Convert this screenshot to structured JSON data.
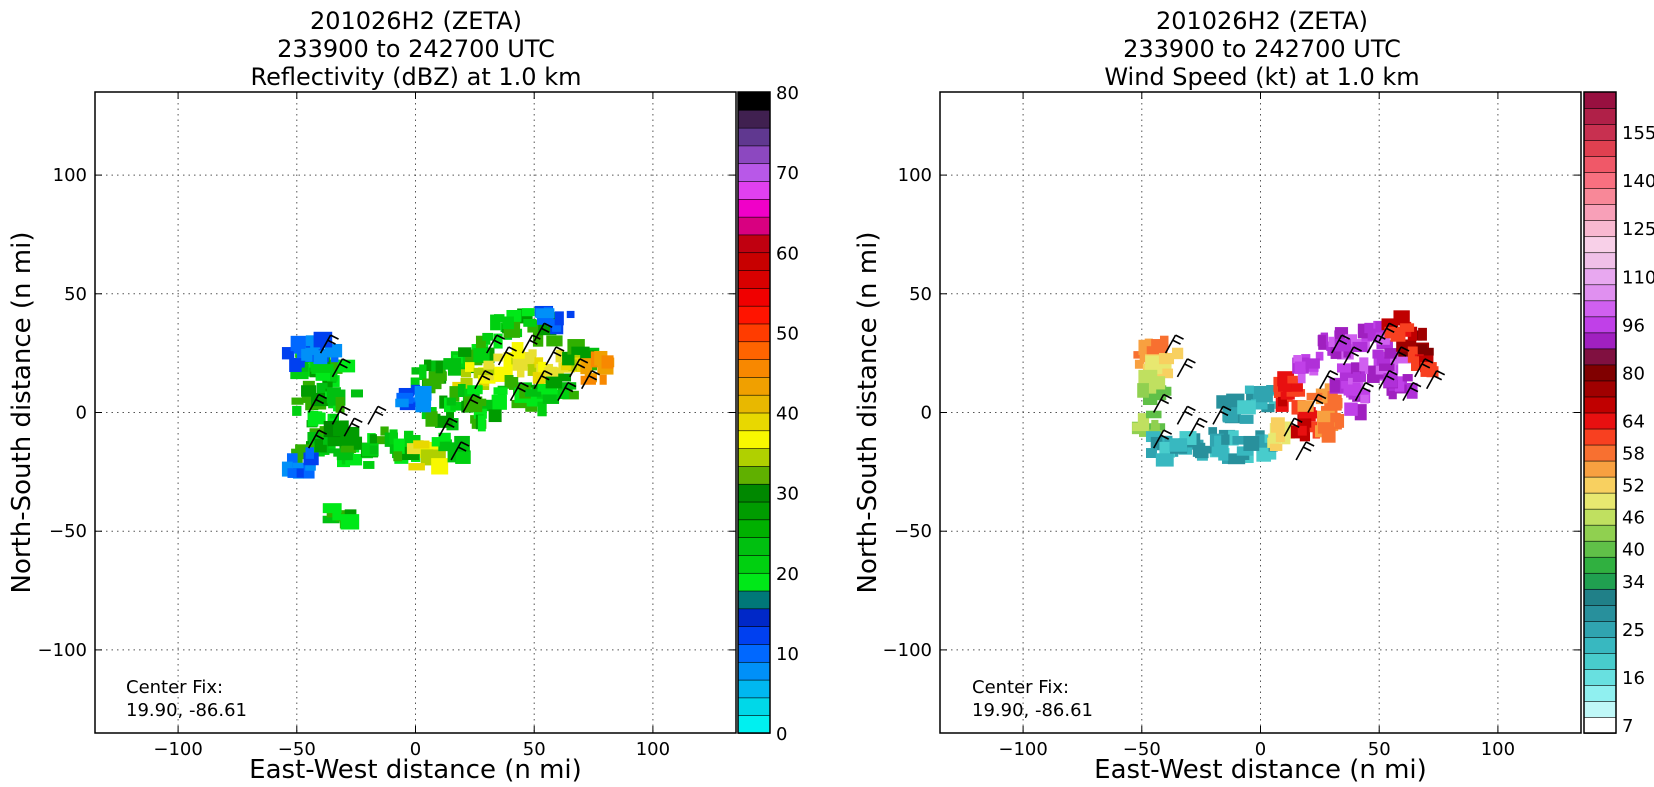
{
  "chart_data": [
    {
      "type": "heatmap",
      "title_lines": [
        "201026H2 (ZETA)",
        "233900 to 242700 UTC",
        "Reflectivity (dBZ) at 1.0 km"
      ],
      "xlabel": "East-West distance (n mi)",
      "ylabel": "North-South distance (n mi)",
      "xlim": [
        -135,
        135
      ],
      "ylim": [
        -135,
        135
      ],
      "xticks": [
        -100,
        -50,
        0,
        50,
        100
      ],
      "yticks": [
        -100,
        -50,
        0,
        50,
        100
      ],
      "xtick_labels": [
        "−100",
        "−50",
        "0",
        "50",
        "100"
      ],
      "ytick_labels": [
        "−100",
        "−50",
        "0",
        "50",
        "100"
      ],
      "grid": true,
      "annotation": [
        "Center Fix:",
        "19.90, -86.61"
      ],
      "colorbar": {
        "min": 0,
        "max": 80,
        "tick_values": [
          0,
          10,
          20,
          30,
          40,
          50,
          60,
          70,
          80
        ],
        "tick_labels": [
          "0",
          "10",
          "20",
          "30",
          "40",
          "50",
          "60",
          "70",
          "80"
        ],
        "colors": [
          "#00f0f0",
          "#00d8e8",
          "#00b8f0",
          "#0090f8",
          "#0068ff",
          "#0040f0",
          "#0028c8",
          "#007878",
          "#00e818",
          "#00d010",
          "#00c010",
          "#00b000",
          "#009c00",
          "#008800",
          "#60b000",
          "#b0d000",
          "#f8f800",
          "#e8d800",
          "#e8b800",
          "#f0a000",
          "#f88800",
          "#ff6400",
          "#ff3c00",
          "#ff1400",
          "#f00000",
          "#d80000",
          "#c80000",
          "#c00010",
          "#d80080",
          "#f000c8",
          "#e040f0",
          "#b858e8",
          "#8c48c0",
          "#603890",
          "#402050",
          "#000000"
        ]
      },
      "points": [
        {
          "x": -45,
          "y": 22,
          "c": "green"
        },
        {
          "x": -40,
          "y": 15,
          "c": "green"
        },
        {
          "x": -35,
          "y": 20,
          "c": "green"
        },
        {
          "x": -45,
          "y": 5,
          "c": "green"
        },
        {
          "x": -40,
          "y": -5,
          "c": "green"
        },
        {
          "x": -30,
          "y": 5,
          "c": "green"
        },
        {
          "x": -45,
          "y": -15,
          "c": "green"
        },
        {
          "x": -35,
          "y": -12,
          "c": "green"
        },
        {
          "x": -25,
          "y": -18,
          "c": "green"
        },
        {
          "x": -48,
          "y": 25,
          "c": "blue"
        },
        {
          "x": -40,
          "y": 28,
          "c": "blue"
        },
        {
          "x": -48,
          "y": -22,
          "c": "blue"
        },
        {
          "x": -30,
          "y": -8,
          "c": "darkgreen"
        },
        {
          "x": -15,
          "y": -12,
          "c": "green"
        },
        {
          "x": -5,
          "y": -15,
          "c": "green"
        },
        {
          "x": 5,
          "y": -18,
          "c": "yellow"
        },
        {
          "x": 15,
          "y": -15,
          "c": "green"
        },
        {
          "x": 10,
          "y": 0,
          "c": "green"
        },
        {
          "x": 5,
          "y": 15,
          "c": "green"
        },
        {
          "x": 15,
          "y": 20,
          "c": "green"
        },
        {
          "x": 25,
          "y": 28,
          "c": "green"
        },
        {
          "x": 35,
          "y": 35,
          "c": "green"
        },
        {
          "x": 45,
          "y": 38,
          "c": "green"
        },
        {
          "x": 55,
          "y": 35,
          "c": "green"
        },
        {
          "x": 25,
          "y": 15,
          "c": "yellow"
        },
        {
          "x": 35,
          "y": 20,
          "c": "yellow"
        },
        {
          "x": 45,
          "y": 22,
          "c": "yellow"
        },
        {
          "x": 55,
          "y": 18,
          "c": "yellow"
        },
        {
          "x": 65,
          "y": 20,
          "c": "yellow"
        },
        {
          "x": 40,
          "y": 8,
          "c": "green"
        },
        {
          "x": 30,
          "y": 0,
          "c": "green"
        },
        {
          "x": 50,
          "y": 5,
          "c": "green"
        },
        {
          "x": 60,
          "y": 10,
          "c": "green"
        },
        {
          "x": 70,
          "y": 25,
          "c": "green"
        },
        {
          "x": 75,
          "y": 18,
          "c": "orange"
        },
        {
          "x": 20,
          "y": 5,
          "c": "green"
        },
        {
          "x": -30,
          "y": -42,
          "c": "green"
        },
        {
          "x": 0,
          "y": 5,
          "c": "blue"
        },
        {
          "x": 60,
          "y": 40,
          "c": "blue"
        }
      ]
    },
    {
      "type": "heatmap",
      "title_lines": [
        "201026H2 (ZETA)",
        "233900 to 242700 UTC",
        "Wind Speed (kt) at 1.0 km"
      ],
      "xlabel": "East-West distance (n mi)",
      "ylabel": "North-South distance (n mi)",
      "xlim": [
        -135,
        135
      ],
      "ylim": [
        -135,
        135
      ],
      "xticks": [
        -100,
        -50,
        0,
        50,
        100
      ],
      "yticks": [
        -100,
        -50,
        0,
        50,
        100
      ],
      "xtick_labels": [
        "−100",
        "−50",
        "0",
        "50",
        "100"
      ],
      "ytick_labels": [
        "−100",
        "−50",
        "0",
        "50",
        "100"
      ],
      "grid": true,
      "annotation": [
        "Center Fix:",
        "19.90, -86.61"
      ],
      "colorbar": {
        "tick_labels": [
          "7",
          "16",
          "25",
          "34",
          "40",
          "46",
          "52",
          "58",
          "64",
          "80",
          "96",
          "110",
          "125",
          "140",
          "155"
        ],
        "tick_segments": [
          0.5,
          3.5,
          6.5,
          9.5,
          11.5,
          13.5,
          15.5,
          17.5,
          19.5,
          22.5,
          25.5,
          28.5,
          31.5,
          34.5,
          37.5
        ],
        "colors": [
          "#ffffff",
          "#c0f8f8",
          "#90f0f0",
          "#68e0e0",
          "#48cccc",
          "#38b8c0",
          "#30a4b0",
          "#28909c",
          "#208088",
          "#20a050",
          "#30b040",
          "#60c048",
          "#90d050",
          "#c0e060",
          "#e8e870",
          "#f8d060",
          "#f8a040",
          "#f87030",
          "#f84020",
          "#e81010",
          "#c00000",
          "#a00000",
          "#800000",
          "#801040",
          "#a020c0",
          "#c040e8",
          "#d060f0",
          "#e090f0",
          "#e8a8f0",
          "#f0c0e8",
          "#f8d0e8",
          "#f8b8d0",
          "#f8a0b8",
          "#f88898",
          "#f87080",
          "#f05868",
          "#e04050",
          "#c83050",
          "#b02048",
          "#981040"
        ]
      },
      "points": [
        {
          "x": -45,
          "y": 25,
          "c": "orange"
        },
        {
          "x": -40,
          "y": 20,
          "c": "yellow"
        },
        {
          "x": -45,
          "y": 10,
          "c": "green"
        },
        {
          "x": -45,
          "y": -5,
          "c": "green"
        },
        {
          "x": -40,
          "y": -15,
          "c": "teal"
        },
        {
          "x": -30,
          "y": -15,
          "c": "teal"
        },
        {
          "x": -20,
          "y": -12,
          "c": "teal"
        },
        {
          "x": -10,
          "y": -15,
          "c": "teal"
        },
        {
          "x": 0,
          "y": -15,
          "c": "teal"
        },
        {
          "x": -10,
          "y": 2,
          "c": "teal"
        },
        {
          "x": 0,
          "y": 5,
          "c": "teal"
        },
        {
          "x": 10,
          "y": -10,
          "c": "yellow"
        },
        {
          "x": 15,
          "y": 5,
          "c": "red"
        },
        {
          "x": 20,
          "y": -5,
          "c": "red"
        },
        {
          "x": 25,
          "y": 5,
          "c": "orange"
        },
        {
          "x": 30,
          "y": -5,
          "c": "orange"
        },
        {
          "x": 10,
          "y": 12,
          "c": "red"
        },
        {
          "x": 20,
          "y": 20,
          "c": "purple"
        },
        {
          "x": 30,
          "y": 28,
          "c": "purple"
        },
        {
          "x": 40,
          "y": 30,
          "c": "purple"
        },
        {
          "x": 50,
          "y": 32,
          "c": "purple"
        },
        {
          "x": 35,
          "y": 15,
          "c": "purple"
        },
        {
          "x": 45,
          "y": 18,
          "c": "purple"
        },
        {
          "x": 55,
          "y": 20,
          "c": "purple"
        },
        {
          "x": 40,
          "y": 5,
          "c": "purple"
        },
        {
          "x": 60,
          "y": 10,
          "c": "purple"
        },
        {
          "x": 65,
          "y": 30,
          "c": "darkred"
        },
        {
          "x": 70,
          "y": 20,
          "c": "red"
        },
        {
          "x": 60,
          "y": 35,
          "c": "red"
        }
      ]
    }
  ]
}
